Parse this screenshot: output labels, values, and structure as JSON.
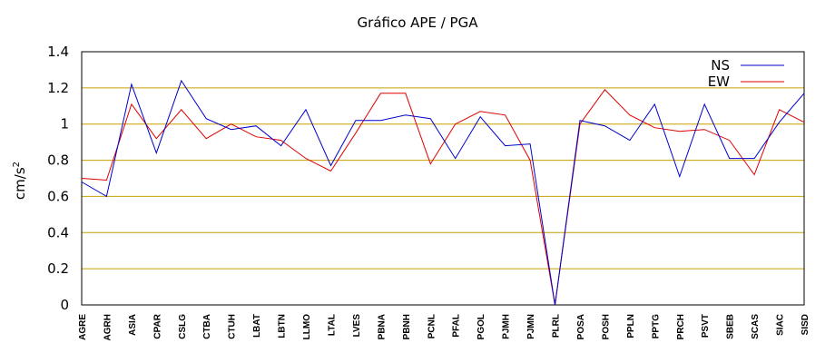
{
  "chart_data": {
    "type": "line",
    "title": "Gráfico  APE / PGA",
    "ylabel": "cm/s",
    "ylabel_sup": "2",
    "xlabel": "",
    "ylim": [
      0,
      1.4
    ],
    "yticks": [
      "0",
      "0.2",
      "0.4",
      "0.6",
      "0.8",
      "1",
      "1.2",
      "1.4"
    ],
    "grid": "horizontal",
    "grid_color": "#c8a000",
    "legend_position": "top-right",
    "categories": [
      "AGRE",
      "AGRH",
      "ASIA",
      "CPAR",
      "CSLG",
      "CTBA",
      "CTUH",
      "LBAT",
      "LBTN",
      "LLMO",
      "LTAL",
      "LVES",
      "PBNA",
      "PBNH",
      "PCNL",
      "PFAL",
      "PGOL",
      "PJMH",
      "PJMN",
      "PLRL",
      "POSA",
      "POSH",
      "PPLN",
      "PPTG",
      "PRCH",
      "PSVT",
      "SBEB",
      "SCAS",
      "SIAC",
      "SISD"
    ],
    "series": [
      {
        "name": "NS",
        "color": "#0000cc",
        "values": [
          0.68,
          0.6,
          1.22,
          0.84,
          1.24,
          1.03,
          0.97,
          0.99,
          0.88,
          1.08,
          0.77,
          1.02,
          1.02,
          1.05,
          1.03,
          0.81,
          1.04,
          0.88,
          0.89,
          0.0,
          1.02,
          0.99,
          0.91,
          1.11,
          0.71,
          1.11,
          0.81,
          0.81,
          1.01,
          1.17
        ]
      },
      {
        "name": "EW",
        "color": "#dd0000",
        "values": [
          0.7,
          0.69,
          1.11,
          0.92,
          1.08,
          0.92,
          1.0,
          0.93,
          0.91,
          0.81,
          0.74,
          0.95,
          1.17,
          1.17,
          0.78,
          1.0,
          1.07,
          1.05,
          0.8,
          0.0,
          1.0,
          1.19,
          1.05,
          0.98,
          0.96,
          0.97,
          0.91,
          0.72,
          1.08,
          1.01
        ]
      }
    ]
  }
}
